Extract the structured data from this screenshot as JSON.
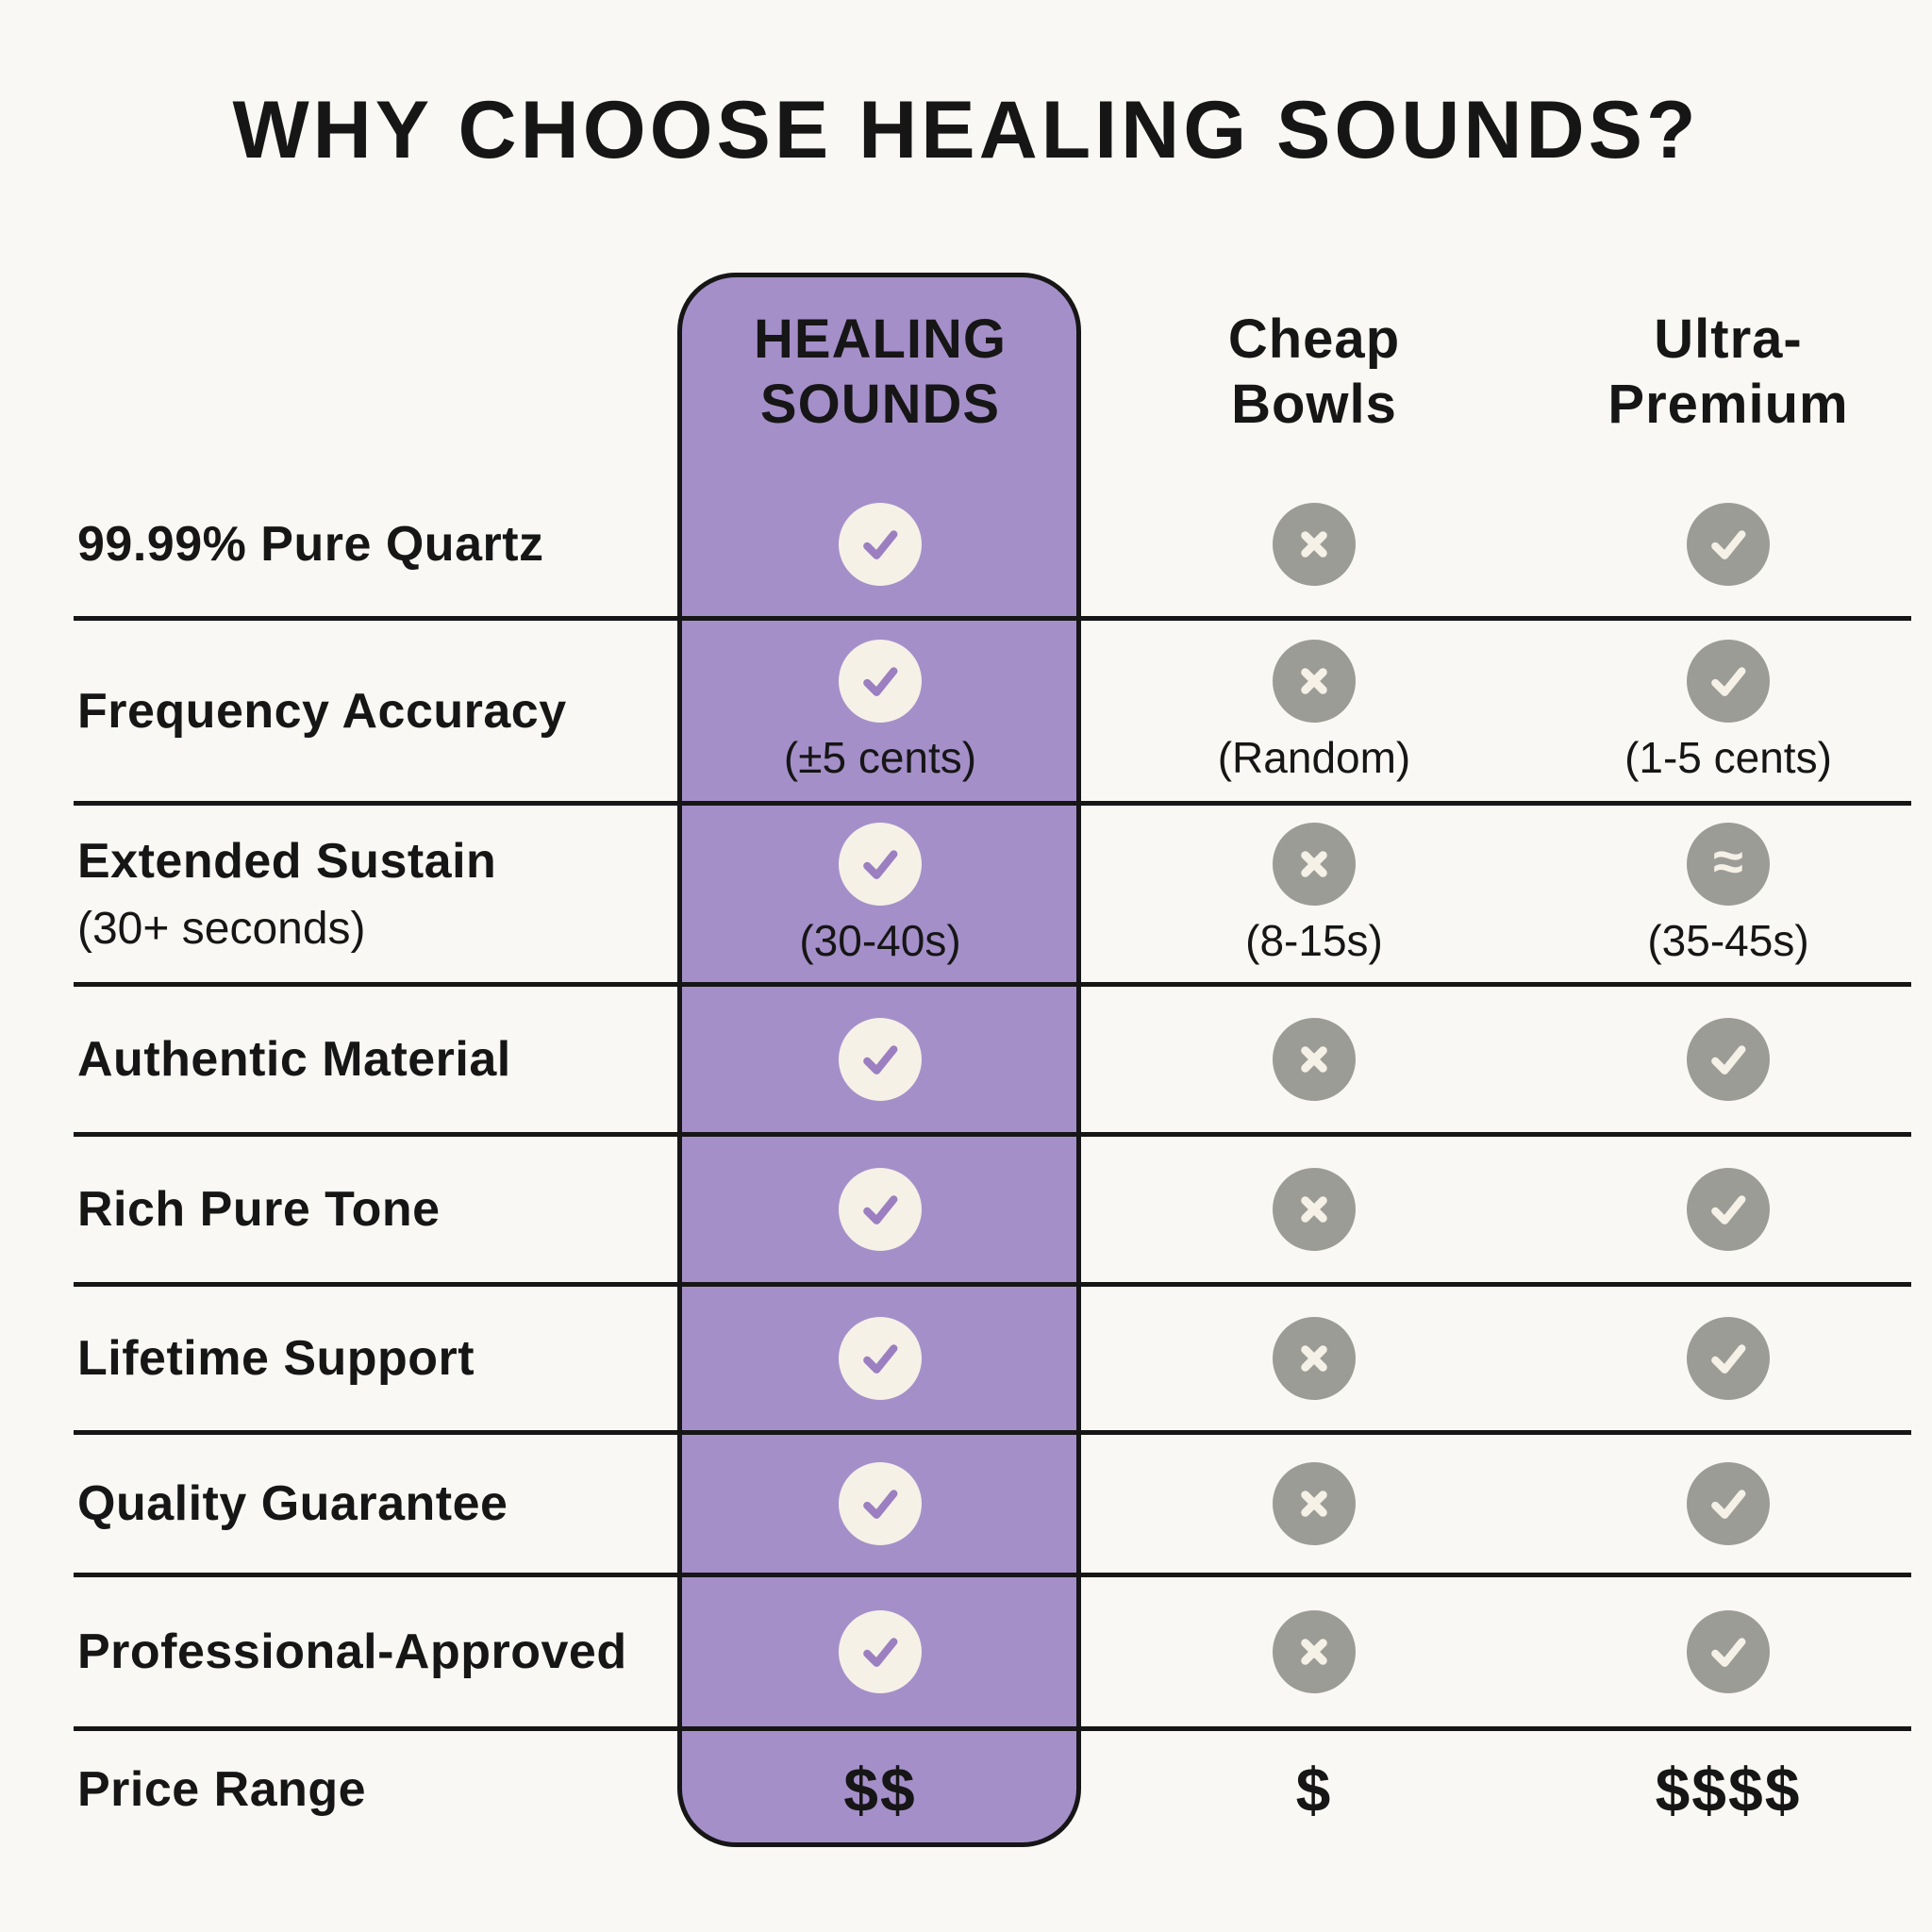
{
  "title": "WHY CHOOSE HEALING SOUNDS?",
  "columns": [
    {
      "id": "healing",
      "label": "HEALING\nSOUNDS",
      "highlight": true
    },
    {
      "id": "cheap",
      "label": "Cheap\nBowls",
      "highlight": false
    },
    {
      "id": "ultra",
      "label": "Ultra-\nPremium",
      "highlight": false
    }
  ],
  "icon_legend": {
    "check": "check-icon",
    "cross": "x-mark-icon",
    "approx": "approximately-equal-icon"
  },
  "rows": [
    {
      "label": "99.99% Pure Quartz",
      "cells": {
        "healing": {
          "icon": "check"
        },
        "cheap": {
          "icon": "cross"
        },
        "ultra": {
          "icon": "check"
        }
      }
    },
    {
      "label": "Frequency Accuracy",
      "cells": {
        "healing": {
          "icon": "check",
          "note": "(±5 cents)"
        },
        "cheap": {
          "icon": "cross",
          "note": "(Random)"
        },
        "ultra": {
          "icon": "check",
          "note": "(1-5 cents)"
        }
      }
    },
    {
      "label": "Extended Sustain",
      "sublabel": "(30+ seconds)",
      "cells": {
        "healing": {
          "icon": "check",
          "note": "(30-40s)"
        },
        "cheap": {
          "icon": "cross",
          "note": "(8-15s)"
        },
        "ultra": {
          "icon": "approx",
          "note": "(35-45s)"
        }
      }
    },
    {
      "label": "Authentic Material",
      "cells": {
        "healing": {
          "icon": "check"
        },
        "cheap": {
          "icon": "cross"
        },
        "ultra": {
          "icon": "check"
        }
      }
    },
    {
      "label": "Rich Pure Tone",
      "cells": {
        "healing": {
          "icon": "check"
        },
        "cheap": {
          "icon": "cross"
        },
        "ultra": {
          "icon": "check"
        }
      }
    },
    {
      "label": "Lifetime Support",
      "cells": {
        "healing": {
          "icon": "check"
        },
        "cheap": {
          "icon": "cross"
        },
        "ultra": {
          "icon": "check"
        }
      }
    },
    {
      "label": "Quality Guarantee",
      "cells": {
        "healing": {
          "icon": "check"
        },
        "cheap": {
          "icon": "cross"
        },
        "ultra": {
          "icon": "check"
        }
      }
    },
    {
      "label": "Professional-Approved",
      "cells": {
        "healing": {
          "icon": "check"
        },
        "cheap": {
          "icon": "cross"
        },
        "ultra": {
          "icon": "check"
        }
      }
    },
    {
      "label": "Price Range",
      "cells": {
        "healing": {
          "text": "$$"
        },
        "cheap": {
          "text": "$"
        },
        "ultra": {
          "text": "$$$$"
        }
      }
    }
  ],
  "colors": {
    "column_highlight": "#A58FC9",
    "badge_cream": "#F5F1E7",
    "badge_gray": "#9C9C97",
    "check_purple": "#9B7FC0",
    "ink": "#161616",
    "background": "#FAF8F4"
  }
}
